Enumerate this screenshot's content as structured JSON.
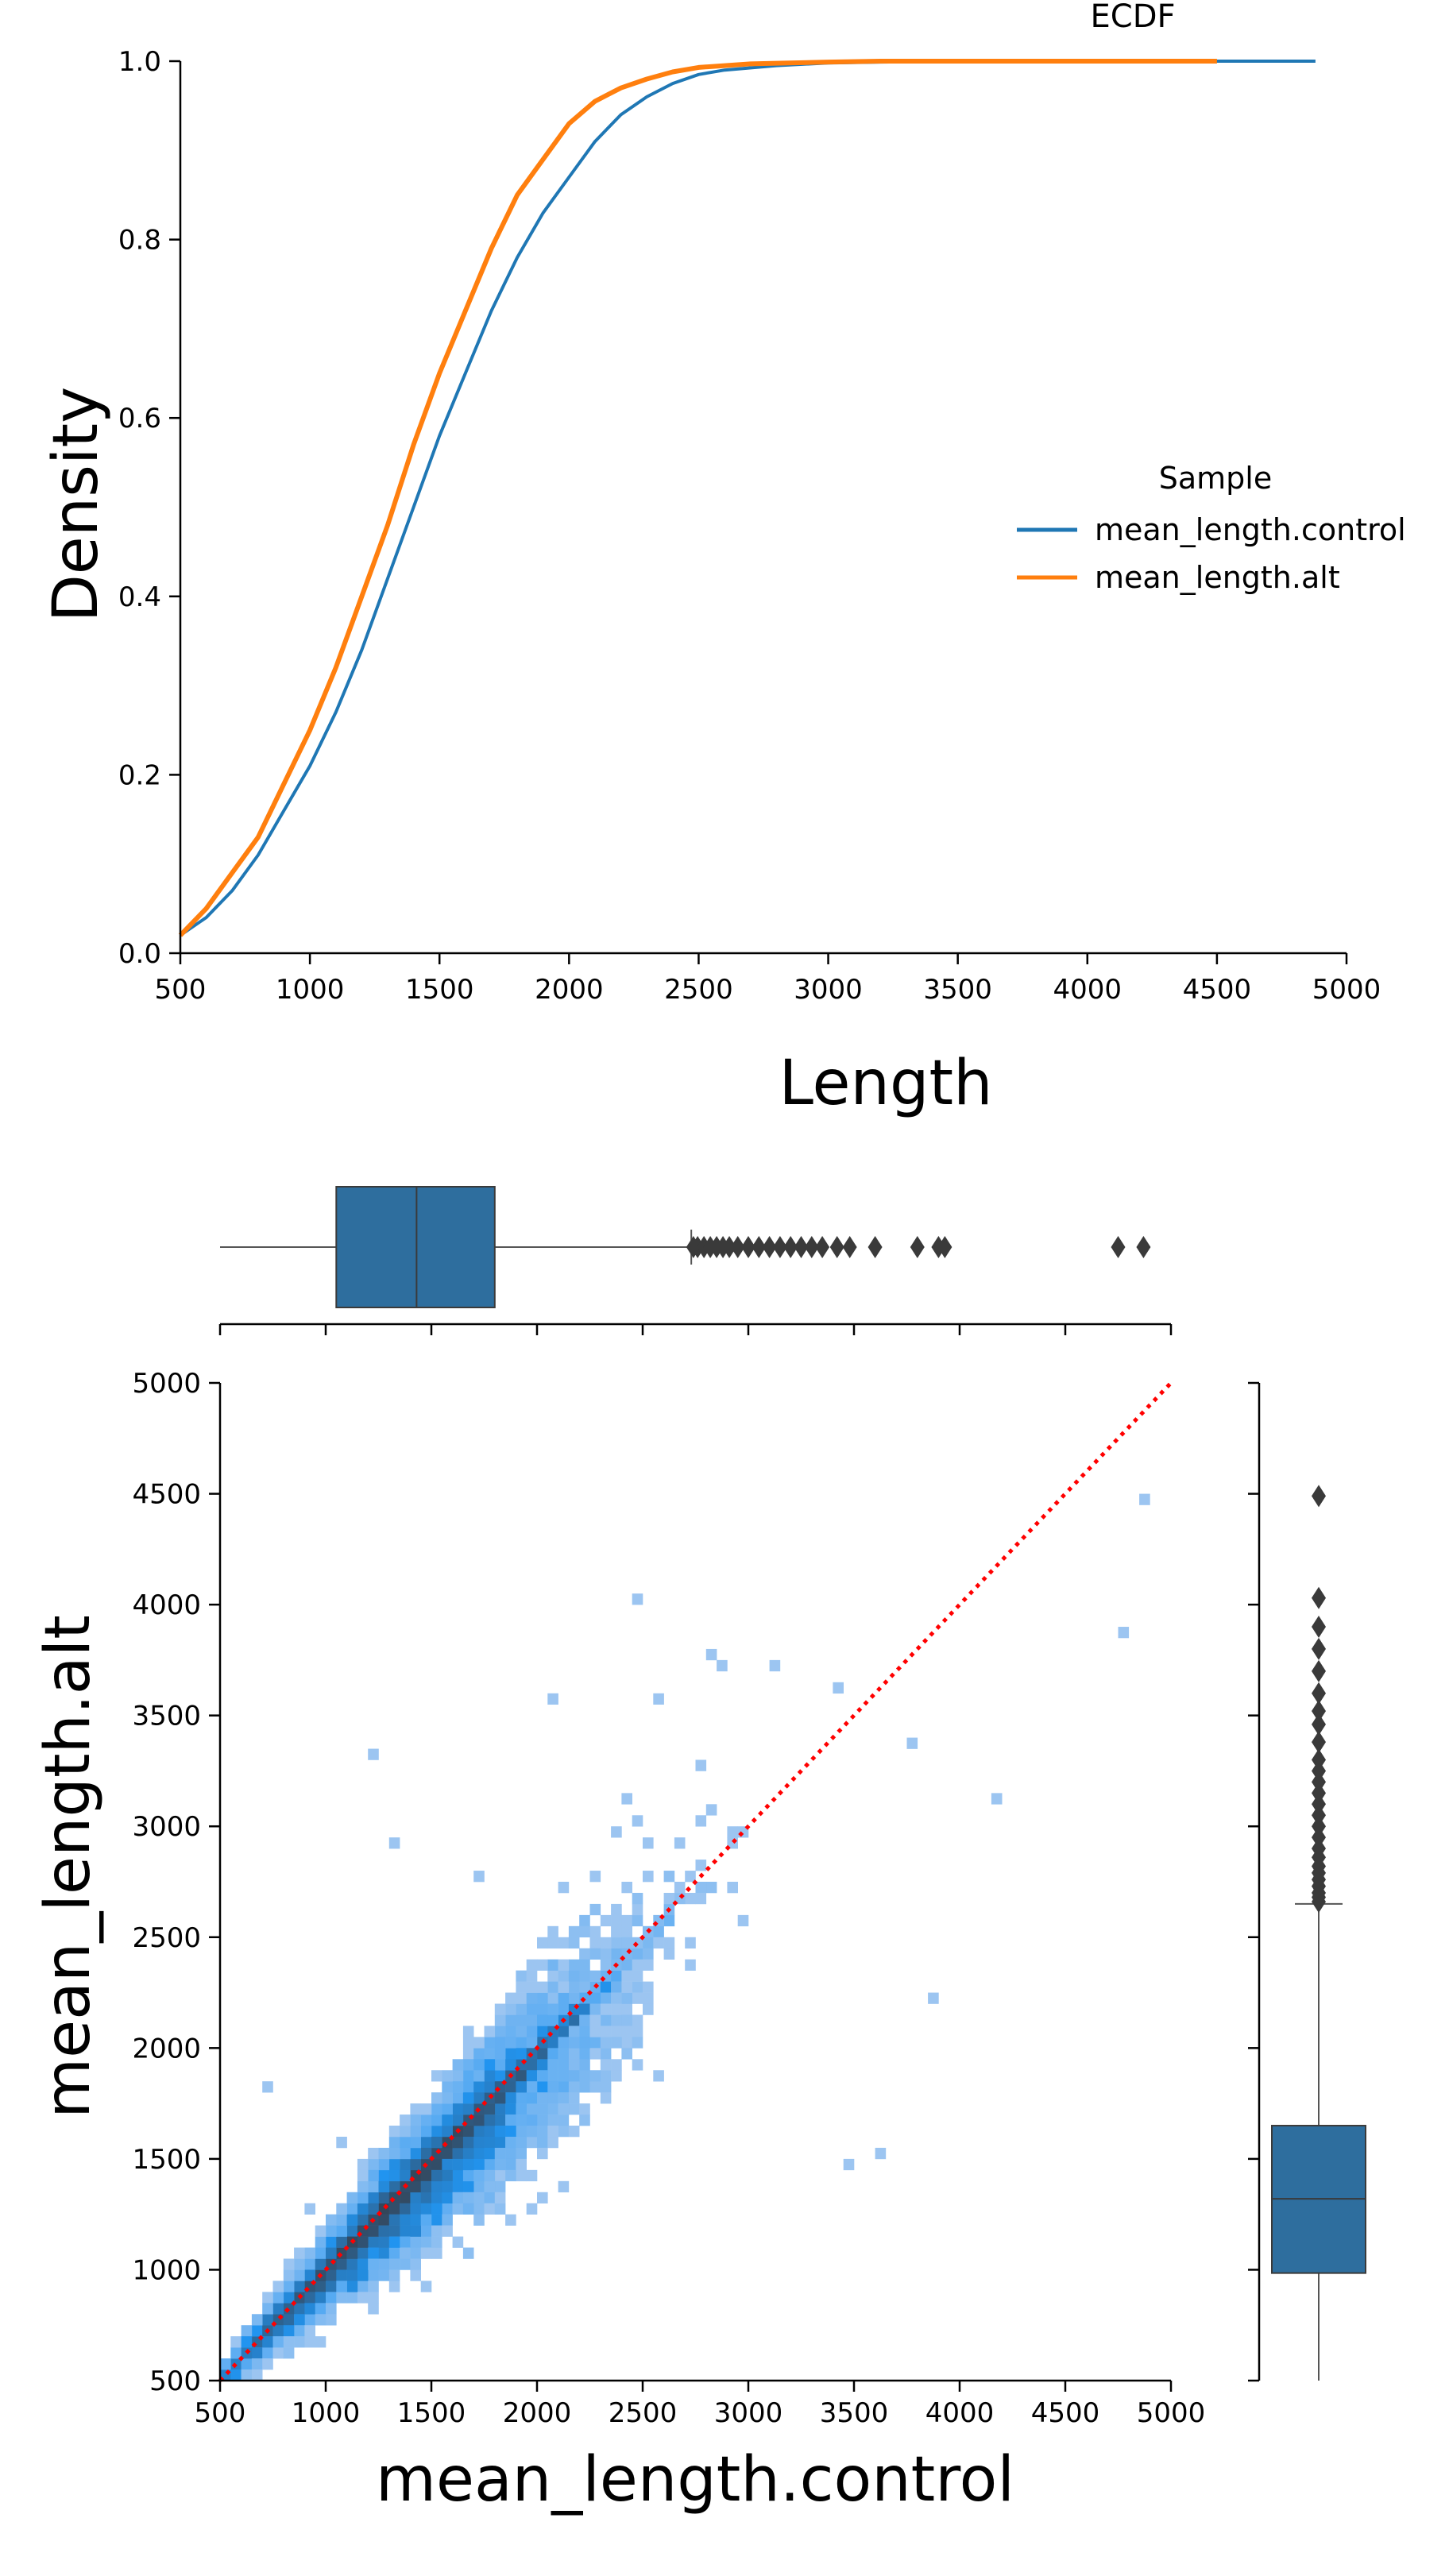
{
  "chart_data": [
    {
      "type": "line",
      "title": "ECDF",
      "xlabel": "Length",
      "ylabel": "Density",
      "xlim": [
        500,
        5000
      ],
      "ylim": [
        0,
        1
      ],
      "xticks": [
        "500",
        "1000",
        "1500",
        "2000",
        "2500",
        "3000",
        "3500",
        "4000",
        "4500",
        "5000"
      ],
      "yticks": [
        "0.0",
        "0.2",
        "0.4",
        "0.6",
        "0.8",
        "1.0"
      ],
      "grid": false,
      "legend": {
        "title": "Sample",
        "placement": "right",
        "entries": [
          "mean_length.control",
          "mean_length.alt"
        ]
      },
      "series": [
        {
          "name": "mean_length.control",
          "color": "#1f77b4",
          "points": [
            [
              500,
              0.02
            ],
            [
              600,
              0.04
            ],
            [
              700,
              0.07
            ],
            [
              800,
              0.11
            ],
            [
              900,
              0.16
            ],
            [
              1000,
              0.21
            ],
            [
              1100,
              0.27
            ],
            [
              1200,
              0.34
            ],
            [
              1300,
              0.42
            ],
            [
              1400,
              0.5
            ],
            [
              1500,
              0.58
            ],
            [
              1600,
              0.65
            ],
            [
              1700,
              0.72
            ],
            [
              1800,
              0.78
            ],
            [
              1900,
              0.83
            ],
            [
              2000,
              0.87
            ],
            [
              2100,
              0.91
            ],
            [
              2200,
              0.94
            ],
            [
              2300,
              0.96
            ],
            [
              2400,
              0.975
            ],
            [
              2500,
              0.985
            ],
            [
              2600,
              0.99
            ],
            [
              2800,
              0.995
            ],
            [
              3000,
              0.998
            ],
            [
              3200,
              0.999
            ],
            [
              3500,
              1.0
            ],
            [
              4880,
              1.0
            ]
          ]
        },
        {
          "name": "mean_length.alt",
          "color": "#ff7f0e",
          "points": [
            [
              500,
              0.02
            ],
            [
              600,
              0.05
            ],
            [
              700,
              0.09
            ],
            [
              800,
              0.13
            ],
            [
              900,
              0.19
            ],
            [
              1000,
              0.25
            ],
            [
              1100,
              0.32
            ],
            [
              1200,
              0.4
            ],
            [
              1300,
              0.48
            ],
            [
              1400,
              0.57
            ],
            [
              1500,
              0.65
            ],
            [
              1600,
              0.72
            ],
            [
              1700,
              0.79
            ],
            [
              1800,
              0.85
            ],
            [
              1900,
              0.89
            ],
            [
              2000,
              0.93
            ],
            [
              2100,
              0.955
            ],
            [
              2200,
              0.97
            ],
            [
              2300,
              0.98
            ],
            [
              2400,
              0.988
            ],
            [
              2500,
              0.993
            ],
            [
              2700,
              0.997
            ],
            [
              3000,
              0.999
            ],
            [
              3200,
              1.0
            ],
            [
              4500,
              1.0
            ]
          ]
        }
      ]
    },
    {
      "type": "heatmap",
      "xlabel": "mean_length.control",
      "ylabel": "mean_length.alt",
      "xlim": [
        500,
        5000
      ],
      "ylim": [
        500,
        5000
      ],
      "xticks": [
        "500",
        "1000",
        "1500",
        "2000",
        "2500",
        "3000",
        "3500",
        "4000",
        "4500",
        "5000"
      ],
      "yticks": [
        "500",
        "1000",
        "1500",
        "2000",
        "2500",
        "3000",
        "3500",
        "4000",
        "4500",
        "5000"
      ],
      "grid": false,
      "reference_line": {
        "style": "dotted",
        "color": "#ff0000",
        "from": [
          500,
          500
        ],
        "to": [
          5000,
          5000
        ]
      },
      "density_core": [
        [
          500,
          500
        ],
        [
          700,
          700
        ],
        [
          900,
          900
        ],
        [
          1100,
          1080
        ],
        [
          1300,
          1260
        ],
        [
          1500,
          1450
        ],
        [
          1700,
          1620
        ],
        [
          1900,
          1800
        ],
        [
          2100,
          1950
        ],
        [
          2300,
          2150
        ],
        [
          2500,
          2300
        ]
      ],
      "outlier_points": [
        [
          2480,
          4010
        ],
        [
          1240,
          3340
        ],
        [
          2080,
          3560
        ],
        [
          2550,
          3560
        ],
        [
          2800,
          3760
        ],
        [
          2850,
          3720
        ],
        [
          3100,
          3720
        ],
        [
          3400,
          3600
        ],
        [
          3750,
          3350
        ],
        [
          4150,
          3100
        ],
        [
          4850,
          4460
        ],
        [
          4770,
          3870
        ],
        [
          3600,
          1520
        ],
        [
          3450,
          1470
        ],
        [
          1300,
          2900
        ],
        [
          1700,
          2780
        ],
        [
          3880,
          2220
        ],
        [
          1050,
          1560
        ],
        [
          920,
          1260
        ],
        [
          720,
          1840
        ],
        [
          2400,
          3120
        ],
        [
          2750,
          3260
        ]
      ],
      "top_boxplot": {
        "orientation": "horizontal",
        "color": "#2e6e9e",
        "whisker_low": 500,
        "q1": 1050,
        "median": 1430,
        "q3": 1800,
        "whisker_high": 2730,
        "outliers": [
          2740,
          2760,
          2790,
          2820,
          2850,
          2880,
          2910,
          2950,
          3000,
          3050,
          3100,
          3150,
          3200,
          3250,
          3300,
          3350,
          3420,
          3480,
          3600,
          3800,
          3900,
          3930,
          4750,
          4870
        ]
      },
      "right_boxplot": {
        "orientation": "vertical",
        "color": "#2e6e9e",
        "whisker_low": 500,
        "q1": 985,
        "median": 1320,
        "q3": 1650,
        "whisker_high": 2650,
        "outliers": [
          2660,
          2680,
          2700,
          2730,
          2760,
          2790,
          2820,
          2860,
          2900,
          2950,
          3000,
          3050,
          3100,
          3150,
          3200,
          3250,
          3300,
          3380,
          3460,
          3520,
          3600,
          3700,
          3800,
          3900,
          4030,
          4490
        ]
      }
    }
  ]
}
